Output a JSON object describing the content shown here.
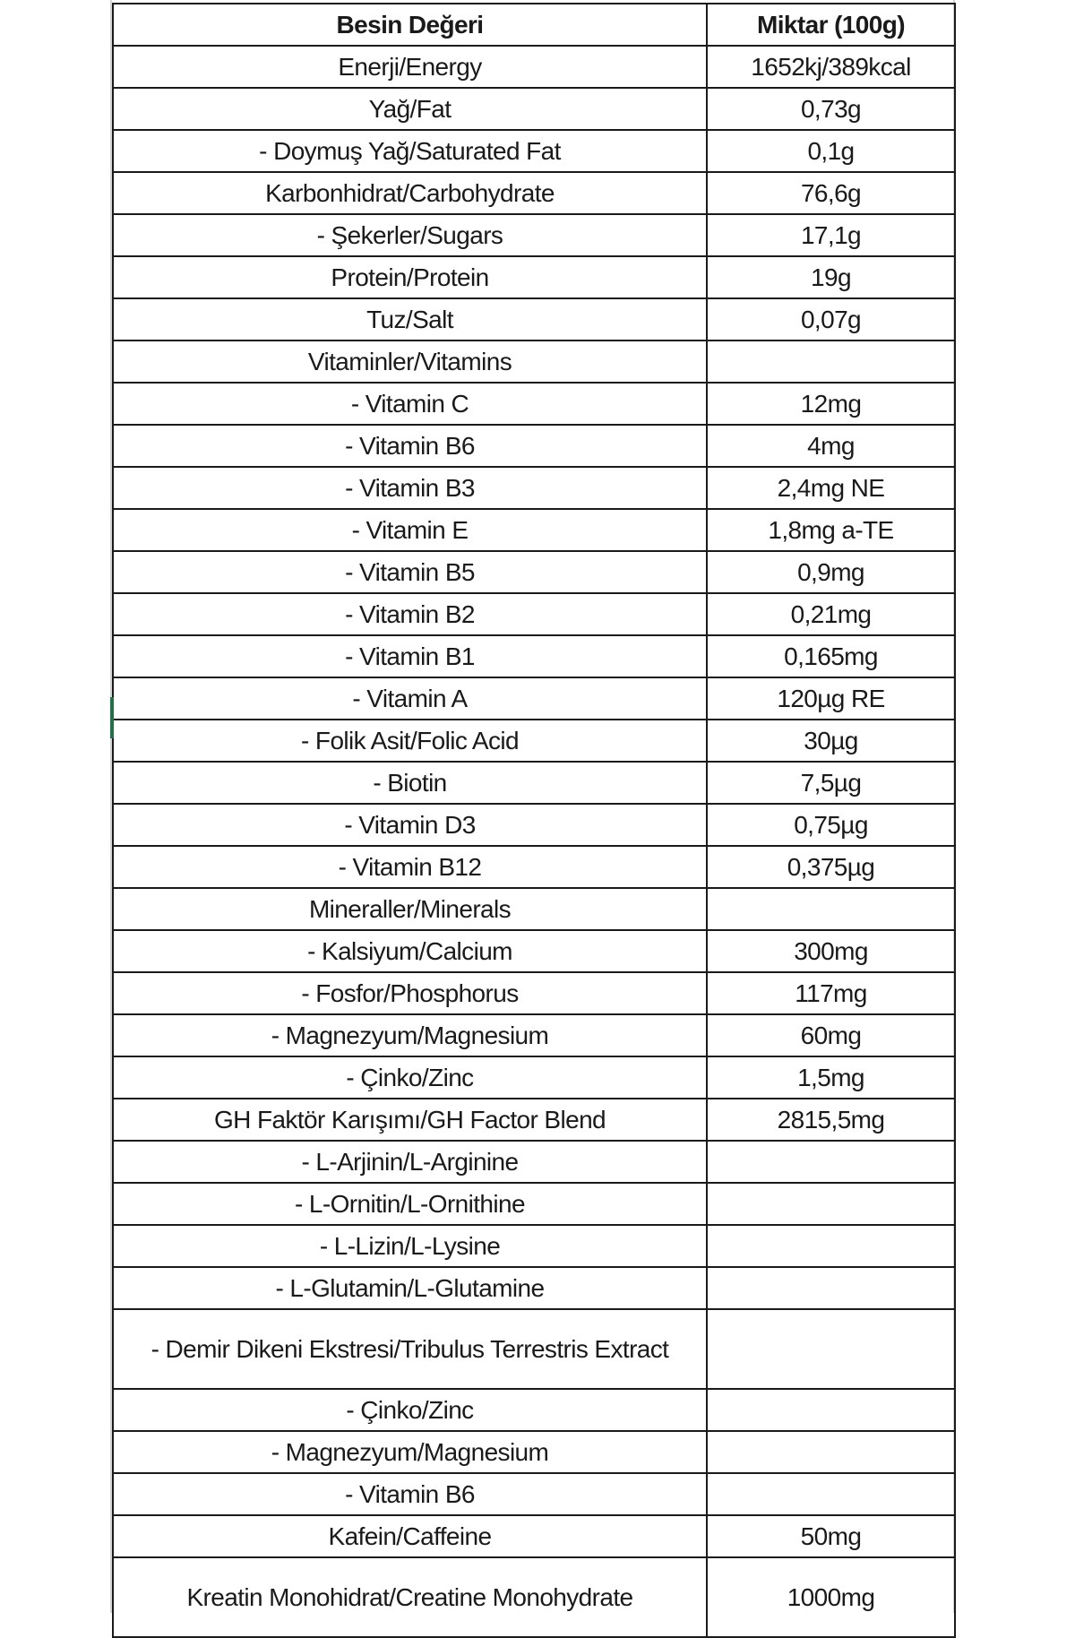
{
  "table": {
    "headers": [
      "Besin Değeri",
      "Miktar (100g)"
    ],
    "rows": [
      {
        "name": "Enerji/Energy",
        "amount": "1652kj/389kcal"
      },
      {
        "name": "Yağ/Fat",
        "amount": "0,73g"
      },
      {
        "name": "- Doymuş Yağ/Saturated Fat",
        "amount": "0,1g"
      },
      {
        "name": "Karbonhidrat/Carbohydrate",
        "amount": "76,6g"
      },
      {
        "name": "- Şekerler/Sugars",
        "amount": "17,1g"
      },
      {
        "name": "Protein/Protein",
        "amount": "19g"
      },
      {
        "name": "Tuz/Salt",
        "amount": "0,07g"
      },
      {
        "name": "Vitaminler/Vitamins",
        "amount": ""
      },
      {
        "name": "- Vitamin C",
        "amount": "12mg"
      },
      {
        "name": "- Vitamin B6",
        "amount": "4mg"
      },
      {
        "name": "- Vitamin B3",
        "amount": "2,4mg NE"
      },
      {
        "name": "- Vitamin E",
        "amount": "1,8mg a-TE"
      },
      {
        "name": "- Vitamin B5",
        "amount": "0,9mg"
      },
      {
        "name": "- Vitamin B2",
        "amount": "0,21mg"
      },
      {
        "name": "- Vitamin B1",
        "amount": "0,165mg"
      },
      {
        "name": "- Vitamin A",
        "amount": "120µg RE"
      },
      {
        "name": "- Folik Asit/Folic Acid",
        "amount": "30µg"
      },
      {
        "name": "- Biotin",
        "amount": "7,5µg"
      },
      {
        "name": "- Vitamin D3",
        "amount": "0,75µg"
      },
      {
        "name": "- Vitamin B12",
        "amount": "0,375µg"
      },
      {
        "name": "Mineraller/Minerals",
        "amount": ""
      },
      {
        "name": "- Kalsiyum/Calcium",
        "amount": "300mg"
      },
      {
        "name": "- Fosfor/Phosphorus",
        "amount": "117mg"
      },
      {
        "name": "- Magnezyum/Magnesium",
        "amount": "60mg"
      },
      {
        "name": "- Çinko/Zinc",
        "amount": "1,5mg"
      },
      {
        "name": "GH Faktör Karışımı/GH Factor Blend",
        "amount": "2815,5mg"
      },
      {
        "name": "- L-Arjinin/L-Arginine",
        "amount": ""
      },
      {
        "name": "- L-Ornitin/L-Ornithine",
        "amount": ""
      },
      {
        "name": "- L-Lizin/L-Lysine",
        "amount": ""
      },
      {
        "name": "- L-Glutamin/L-Glutamine",
        "amount": ""
      },
      {
        "name": "- Demir Dikeni Ekstresi/Tribulus Terrestris Extract",
        "amount": "",
        "double": true
      },
      {
        "name": "- Çinko/Zinc",
        "amount": ""
      },
      {
        "name": "- Magnezyum/Magnesium",
        "amount": ""
      },
      {
        "name": "- Vitamin B6",
        "amount": ""
      },
      {
        "name": "Kafein/Caffeine",
        "amount": "50mg"
      },
      {
        "name": "Kreatin Monohidrat/Creatine Monohydrate",
        "amount": "1000mg",
        "double": true
      }
    ]
  },
  "colors": {
    "border": "#1a1a1a",
    "gridline": "#d4d4d4",
    "active_cell_marker": "#217346"
  }
}
